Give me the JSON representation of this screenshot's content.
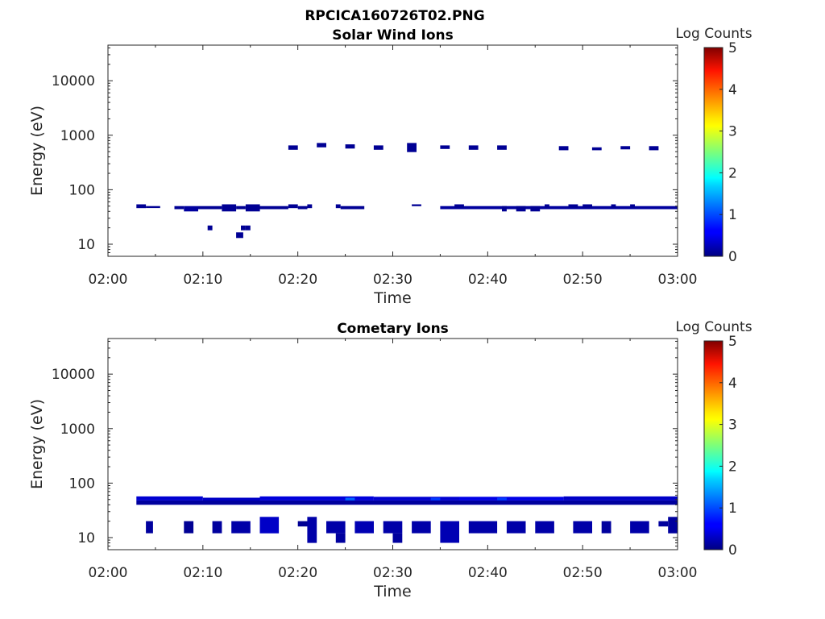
{
  "figure": {
    "title": "RPCICA160726T02.PNG"
  },
  "chart_data": [
    {
      "type": "heatmap",
      "title": "Solar Wind Ions",
      "xlabel": "Time",
      "ylabel": "Energy (eV)",
      "x_ticks": [
        "02:00",
        "02:10",
        "02:20",
        "02:30",
        "02:40",
        "02:50",
        "03:00"
      ],
      "x_range": [
        "02:00",
        "03:00"
      ],
      "y_scale": "log",
      "y_ticks": [
        "10",
        "100",
        "1000",
        "10000"
      ],
      "y_range": [
        6,
        45000
      ],
      "colorbar": {
        "label": "Log Counts",
        "ticks": [
          "0",
          "1",
          "2",
          "3",
          "4",
          "5"
        ],
        "range": [
          0,
          5
        ],
        "colormap": "jet"
      },
      "cells": [
        {
          "t0": "02:03",
          "t1": "02:04",
          "e0": 46,
          "e1": 54,
          "v": 0.1
        },
        {
          "t0": "02:04",
          "t1": "02:05:30",
          "e0": 46,
          "e1": 50,
          "v": 0.1
        },
        {
          "t0": "02:07",
          "t1": "02:08",
          "e0": 44,
          "e1": 50,
          "v": 0.1
        },
        {
          "t0": "02:08",
          "t1": "02:09:30",
          "e0": 40,
          "e1": 50,
          "v": 0.15
        },
        {
          "t0": "02:09:30",
          "t1": "02:12",
          "e0": 44,
          "e1": 50,
          "v": 0.1
        },
        {
          "t0": "02:12",
          "t1": "02:13:30",
          "e0": 40,
          "e1": 54,
          "v": 0.1
        },
        {
          "t0": "02:13:30",
          "t1": "02:14:30",
          "e0": 44,
          "e1": 50,
          "v": 0.1
        },
        {
          "t0": "02:14:30",
          "t1": "02:16",
          "e0": 40,
          "e1": 54,
          "v": 0.1
        },
        {
          "t0": "02:16",
          "t1": "02:19",
          "e0": 44,
          "e1": 50,
          "v": 0.1
        },
        {
          "t0": "02:19",
          "t1": "02:20",
          "e0": 46,
          "e1": 54,
          "v": 0.1
        },
        {
          "t0": "02:20",
          "t1": "02:21",
          "e0": 44,
          "e1": 50,
          "v": 0.1
        },
        {
          "t0": "02:21",
          "t1": "02:21:30",
          "e0": 46,
          "e1": 54,
          "v": 0.1
        },
        {
          "t0": "02:10:30",
          "t1": "02:11",
          "e0": 18,
          "e1": 22,
          "v": 0.1
        },
        {
          "t0": "02:13:30",
          "t1": "02:14:15",
          "e0": 13,
          "e1": 16.5,
          "v": 0.1
        },
        {
          "t0": "02:14",
          "t1": "02:14:30",
          "e0": 18,
          "e1": 22,
          "v": 0.1
        },
        {
          "t0": "02:14:30",
          "t1": "02:15",
          "e0": 18,
          "e1": 22,
          "v": 0.1
        },
        {
          "t0": "02:19",
          "t1": "02:20",
          "e0": 540,
          "e1": 650,
          "v": 0.1
        },
        {
          "t0": "02:22",
          "t1": "02:23",
          "e0": 600,
          "e1": 720,
          "v": 0.1
        },
        {
          "t0": "02:25",
          "t1": "02:26",
          "e0": 570,
          "e1": 680,
          "v": 0.1
        },
        {
          "t0": "02:28",
          "t1": "02:29",
          "e0": 540,
          "e1": 650,
          "v": 0.1
        },
        {
          "t0": "02:31:30",
          "t1": "02:32:30",
          "e0": 490,
          "e1": 720,
          "v": 0.1
        },
        {
          "t0": "02:35",
          "t1": "02:36",
          "e0": 560,
          "e1": 650,
          "v": 0.1
        },
        {
          "t0": "02:38",
          "t1": "02:39",
          "e0": 540,
          "e1": 650,
          "v": 0.1
        },
        {
          "t0": "02:41",
          "t1": "02:42",
          "e0": 540,
          "e1": 650,
          "v": 0.1
        },
        {
          "t0": "02:47:30",
          "t1": "02:48:30",
          "e0": 530,
          "e1": 630,
          "v": 0.1
        },
        {
          "t0": "02:51",
          "t1": "02:52",
          "e0": 530,
          "e1": 600,
          "v": 0.1
        },
        {
          "t0": "02:54",
          "t1": "02:55",
          "e0": 550,
          "e1": 630,
          "v": 0.1
        },
        {
          "t0": "02:57",
          "t1": "02:58",
          "e0": 530,
          "e1": 630,
          "v": 0.1
        },
        {
          "t0": "02:24",
          "t1": "02:24:30",
          "e0": 46,
          "e1": 54,
          "v": 0.1
        },
        {
          "t0": "02:24:30",
          "t1": "02:27",
          "e0": 44,
          "e1": 50,
          "v": 0.1
        },
        {
          "t0": "02:32",
          "t1": "02:33",
          "e0": 50,
          "e1": 54,
          "v": 0.1
        },
        {
          "t0": "02:35",
          "t1": "03:00",
          "e0": 44,
          "e1": 50,
          "v": 0.15
        },
        {
          "t0": "02:36:30",
          "t1": "02:37:30",
          "e0": 46,
          "e1": 54,
          "v": 0.1
        },
        {
          "t0": "02:41:30",
          "t1": "02:42",
          "e0": 40,
          "e1": 50,
          "v": 0.1
        },
        {
          "t0": "02:43",
          "t1": "02:44",
          "e0": 40,
          "e1": 50,
          "v": 0.1
        },
        {
          "t0": "02:44:30",
          "t1": "02:45:30",
          "e0": 40,
          "e1": 50,
          "v": 0.1
        },
        {
          "t0": "02:46",
          "t1": "02:46:30",
          "e0": 46,
          "e1": 54,
          "v": 0.1
        },
        {
          "t0": "02:48:30",
          "t1": "02:49:30",
          "e0": 46,
          "e1": 54,
          "v": 0.1
        },
        {
          "t0": "02:50",
          "t1": "02:51",
          "e0": 46,
          "e1": 54,
          "v": 0.1
        },
        {
          "t0": "02:53",
          "t1": "02:53:30",
          "e0": 46,
          "e1": 54,
          "v": 0.1
        },
        {
          "t0": "02:55",
          "t1": "02:55:30",
          "e0": 46,
          "e1": 54,
          "v": 0.1
        }
      ]
    },
    {
      "type": "heatmap",
      "title": "Cometary Ions",
      "xlabel": "Time",
      "ylabel": "Energy (eV)",
      "x_ticks": [
        "02:00",
        "02:10",
        "02:20",
        "02:30",
        "02:40",
        "02:50",
        "03:00"
      ],
      "x_range": [
        "02:00",
        "03:00"
      ],
      "y_scale": "log",
      "y_ticks": [
        "10",
        "100",
        "1000",
        "10000"
      ],
      "y_range": [
        6,
        45000
      ],
      "colorbar": {
        "label": "Log Counts",
        "ticks": [
          "0",
          "1",
          "2",
          "3",
          "4",
          "5"
        ],
        "range": [
          0,
          5
        ],
        "colormap": "jet"
      },
      "cells": [
        {
          "t0": "02:03",
          "t1": "03:00",
          "e0": 40,
          "e1": 48,
          "v": 0.15
        },
        {
          "t0": "02:03",
          "t1": "02:10",
          "e0": 48,
          "e1": 57,
          "v": 0.4
        },
        {
          "t0": "02:10",
          "t1": "02:16",
          "e0": 48,
          "e1": 54,
          "v": 0.35
        },
        {
          "t0": "02:16",
          "t1": "02:28",
          "e0": 48,
          "e1": 57,
          "v": 0.45
        },
        {
          "t0": "02:28",
          "t1": "02:37",
          "e0": 48,
          "e1": 56,
          "v": 0.4
        },
        {
          "t0": "02:37",
          "t1": "02:48",
          "e0": 48,
          "e1": 56,
          "v": 0.5
        },
        {
          "t0": "02:48",
          "t1": "03:00",
          "e0": 48,
          "e1": 57,
          "v": 0.35
        },
        {
          "t0": "02:25",
          "t1": "02:26",
          "e0": 48,
          "e1": 54,
          "v": 1.1
        },
        {
          "t0": "02:34",
          "t1": "02:35",
          "e0": 48,
          "e1": 54,
          "v": 0.9
        },
        {
          "t0": "02:41",
          "t1": "02:42",
          "e0": 48,
          "e1": 54,
          "v": 0.9
        },
        {
          "t0": "02:04",
          "t1": "02:04:45",
          "e0": 12,
          "e1": 20,
          "v": 0.15
        },
        {
          "t0": "02:08",
          "t1": "02:09",
          "e0": 12,
          "e1": 20,
          "v": 0.1
        },
        {
          "t0": "02:11",
          "t1": "02:12",
          "e0": 12,
          "e1": 20,
          "v": 0.15
        },
        {
          "t0": "02:13",
          "t1": "02:15",
          "e0": 12,
          "e1": 20,
          "v": 0.2
        },
        {
          "t0": "02:16",
          "t1": "02:18",
          "e0": 12,
          "e1": 24,
          "v": 0.35
        },
        {
          "t0": "02:20",
          "t1": "02:21",
          "e0": 16,
          "e1": 20,
          "v": 0.1
        },
        {
          "t0": "02:21",
          "t1": "02:22",
          "e0": 8,
          "e1": 24,
          "v": 0.2
        },
        {
          "t0": "02:23",
          "t1": "02:25",
          "e0": 12,
          "e1": 20,
          "v": 0.2
        },
        {
          "t0": "02:24",
          "t1": "02:25",
          "e0": 8,
          "e1": 12,
          "v": 0.15
        },
        {
          "t0": "02:26",
          "t1": "02:28",
          "e0": 12,
          "e1": 20,
          "v": 0.25
        },
        {
          "t0": "02:29",
          "t1": "02:31",
          "e0": 12,
          "e1": 20,
          "v": 0.2
        },
        {
          "t0": "02:30",
          "t1": "02:31",
          "e0": 8,
          "e1": 12,
          "v": 0.15
        },
        {
          "t0": "02:32",
          "t1": "02:34",
          "e0": 12,
          "e1": 20,
          "v": 0.2
        },
        {
          "t0": "02:35",
          "t1": "02:37",
          "e0": 8,
          "e1": 20,
          "v": 0.25
        },
        {
          "t0": "02:38",
          "t1": "02:39",
          "e0": 12,
          "e1": 20,
          "v": 0.2
        },
        {
          "t0": "02:39",
          "t1": "02:41",
          "e0": 12,
          "e1": 20,
          "v": 0.2
        },
        {
          "t0": "02:42",
          "t1": "02:44",
          "e0": 12,
          "e1": 20,
          "v": 0.2
        },
        {
          "t0": "02:45",
          "t1": "02:47",
          "e0": 12,
          "e1": 20,
          "v": 0.2
        },
        {
          "t0": "02:49",
          "t1": "02:51",
          "e0": 12,
          "e1": 20,
          "v": 0.2
        },
        {
          "t0": "02:52",
          "t1": "02:53",
          "e0": 12,
          "e1": 20,
          "v": 0.15
        },
        {
          "t0": "02:55",
          "t1": "02:57",
          "e0": 12,
          "e1": 20,
          "v": 0.2
        },
        {
          "t0": "02:58",
          "t1": "02:59",
          "e0": 16,
          "e1": 20,
          "v": 0.15
        },
        {
          "t0": "02:59",
          "t1": "03:00",
          "e0": 12,
          "e1": 24,
          "v": 0.15
        }
      ]
    }
  ]
}
